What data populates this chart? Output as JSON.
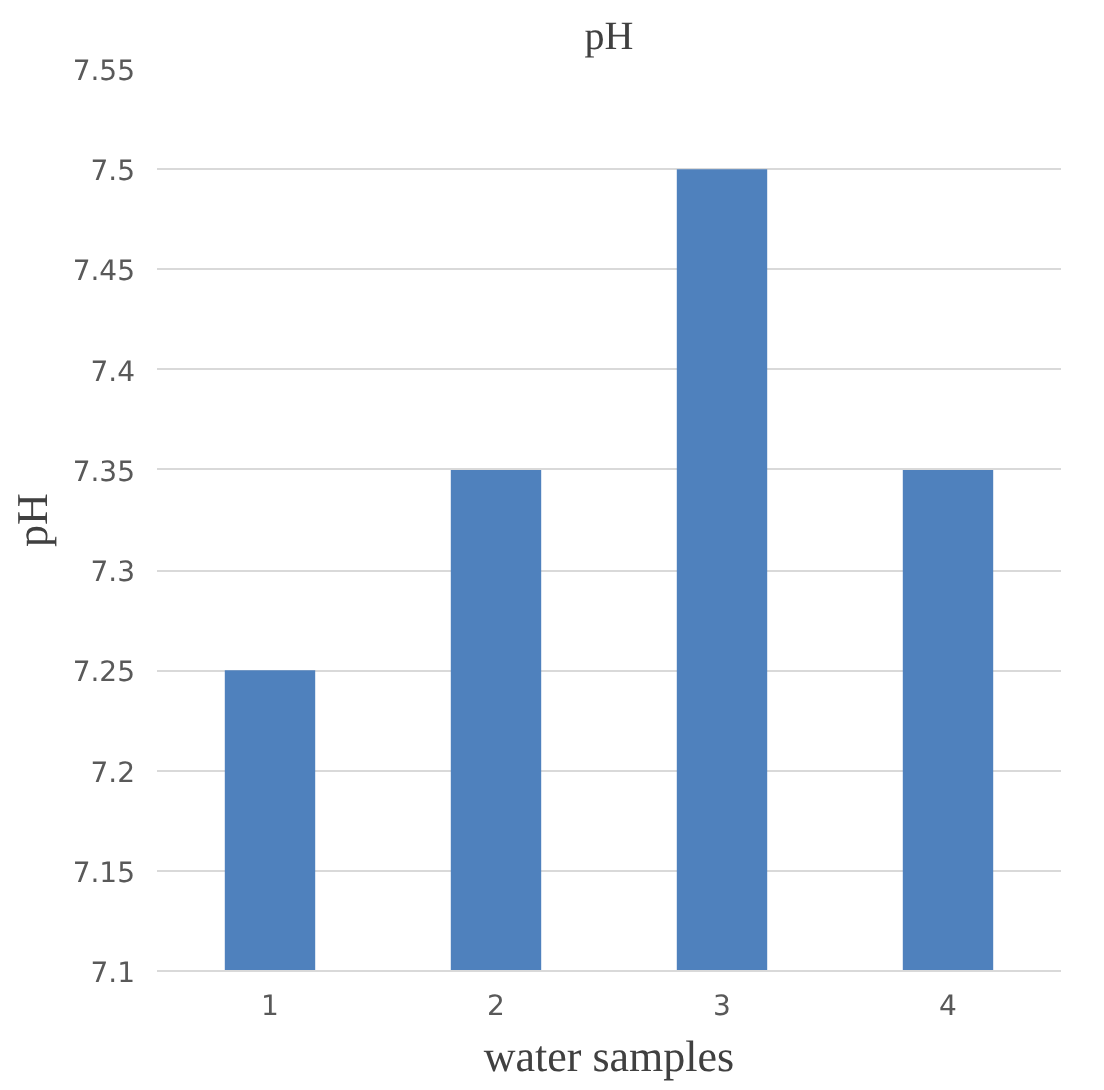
{
  "chart_data": {
    "type": "bar",
    "title": "pH",
    "xlabel": "water samples",
    "ylabel": "pH",
    "categories": [
      "1",
      "2",
      "3",
      "4"
    ],
    "values": [
      7.25,
      7.35,
      7.5,
      7.35
    ],
    "color": "#4f81bd",
    "ylim": [
      7.1,
      7.55
    ],
    "yticks": [
      7.1,
      7.15,
      7.2,
      7.25,
      7.3,
      7.35,
      7.4,
      7.45,
      7.5,
      7.55
    ],
    "grid": "y"
  }
}
